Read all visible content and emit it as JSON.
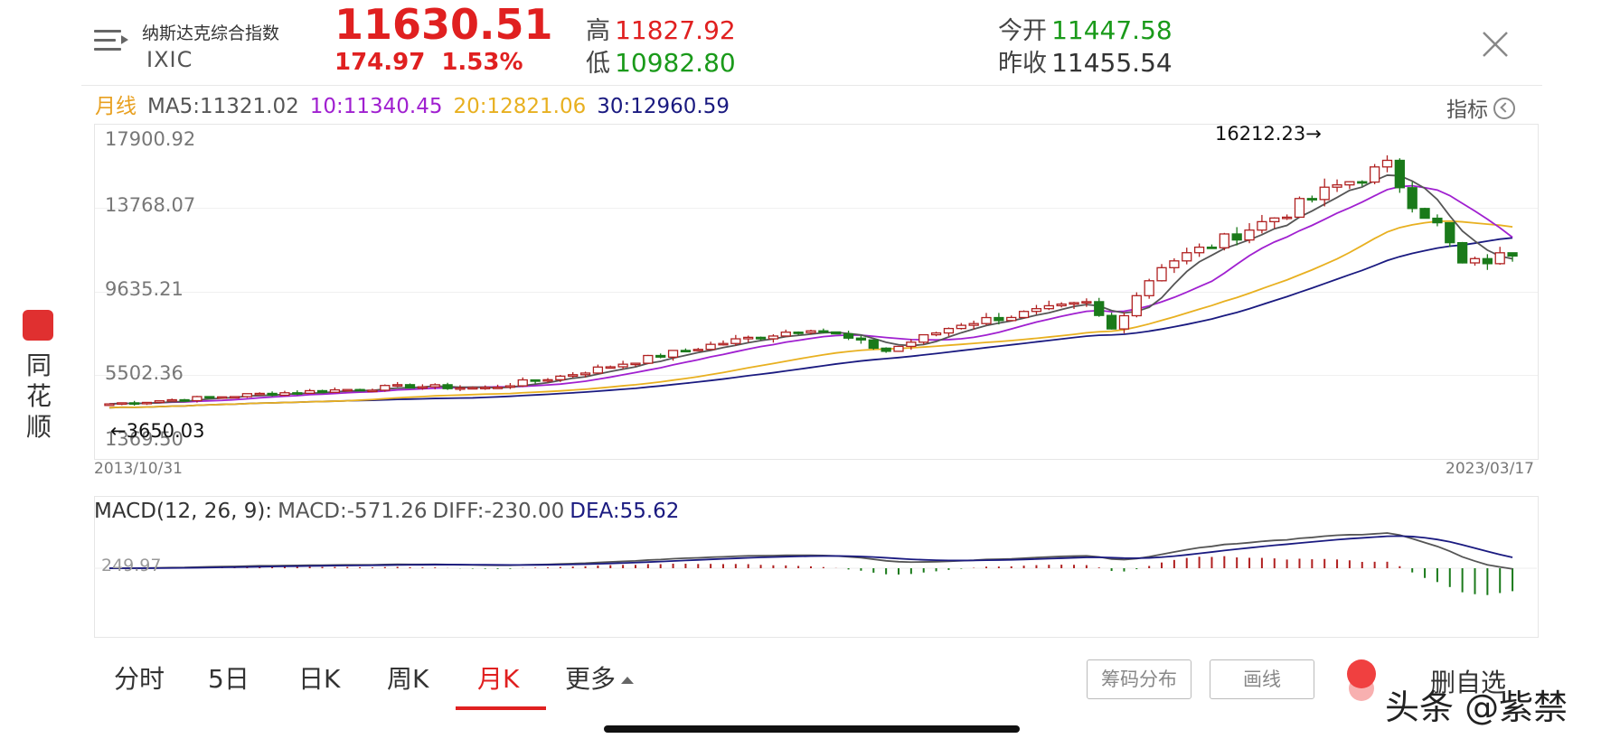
{
  "header": {
    "name": "纳斯达克综合指数",
    "code": "IXIC",
    "price": "11630.51",
    "change": "174.97",
    "change_pct": "1.53%",
    "high_label": "高",
    "high": "11827.92",
    "low_label": "低",
    "low": "10982.80",
    "open_label": "今开",
    "open": "11447.58",
    "prev_close_label": "昨收",
    "prev_close": "11455.54"
  },
  "ma": {
    "period_label": "月线",
    "ma5": "MA5:11321.02",
    "ma10": "10:11340.45",
    "ma20": "20:12821.06",
    "ma30": "30:12960.59"
  },
  "indicator_button": "指标",
  "kline": {
    "y_ticks": [
      "17900.92",
      "13768.07",
      "9635.21",
      "5502.36",
      "1369.50"
    ],
    "max_annotation": "16212.23→",
    "min_annotation": "←3650.03",
    "start_date": "2013/10/31",
    "end_date": "2023/03/17"
  },
  "macd": {
    "name": "MACD(12, 26, 9):",
    "macd": "MACD:-571.26",
    "diff": "DIFF:-230.00",
    "dea": "DEA:55.62",
    "zero_tick": "249.97"
  },
  "tabs": [
    {
      "label": "分时"
    },
    {
      "label": "5日"
    },
    {
      "label": "日K"
    },
    {
      "label": "周K"
    },
    {
      "label": "月K"
    },
    {
      "label": "更多"
    }
  ],
  "buttons": {
    "chip": "筹码分布",
    "draw": "画线",
    "remove_fav": "删自选"
  },
  "side": {
    "app_name": "同花顺"
  },
  "watermark": "头条 @紫禁",
  "colors": {
    "up": "#e02020",
    "down": "#1a9a1a",
    "ma5": "#555555",
    "ma10": "#a020d0",
    "ma20": "#e8b020",
    "ma30": "#1a1a80"
  }
}
